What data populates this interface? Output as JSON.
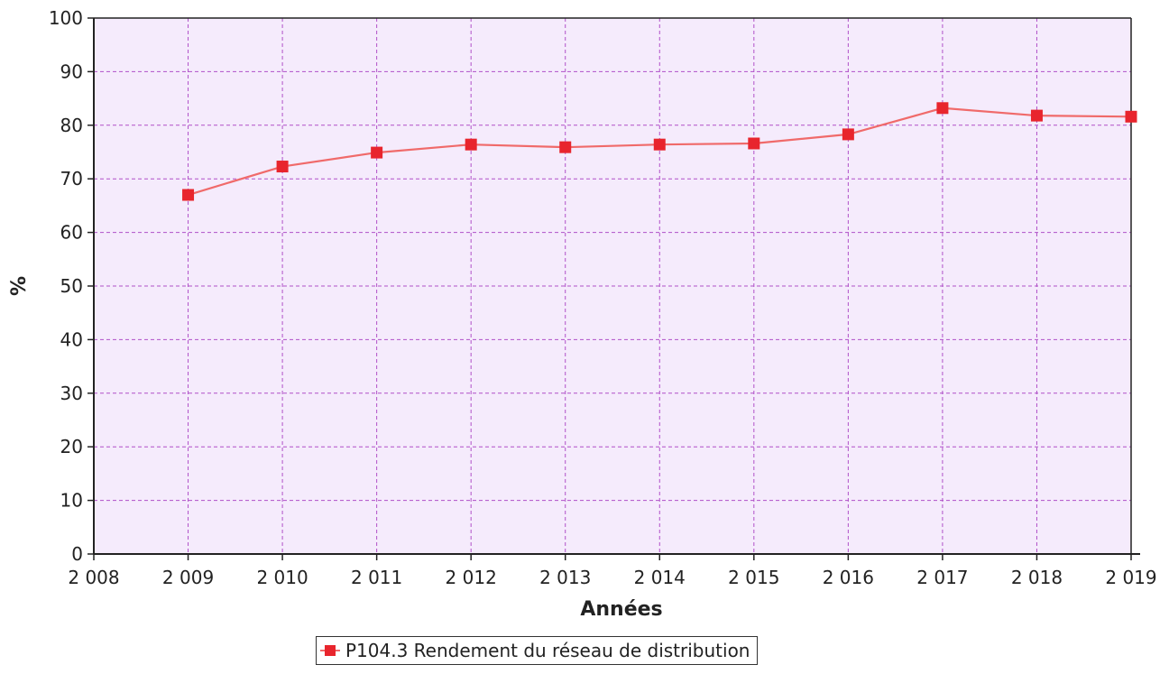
{
  "chart_data": {
    "type": "line",
    "xlabel": "Années",
    "ylabel": "%",
    "x_ticks": [
      "2 008",
      "2 009",
      "2 010",
      "2 011",
      "2 012",
      "2 013",
      "2 014",
      "2 015",
      "2 016",
      "2 017",
      "2 018",
      "2 019"
    ],
    "y_ticks": [
      "0",
      "10",
      "20",
      "30",
      "40",
      "50",
      "60",
      "70",
      "80",
      "90",
      "100"
    ],
    "xlim": [
      2008,
      2019
    ],
    "ylim": [
      0,
      100
    ],
    "grid": true,
    "legend_position": "bottom",
    "series": [
      {
        "name": "P104.3 Rendement du réseau de distribution",
        "x": [
          2009,
          2010,
          2011,
          2012,
          2013,
          2014,
          2015,
          2016,
          2017,
          2018,
          2019
        ],
        "values": [
          67.0,
          72.3,
          74.9,
          76.4,
          75.9,
          76.4,
          76.6,
          78.3,
          83.2,
          81.8,
          81.6
        ]
      }
    ],
    "colors": {
      "plot_background": "#f5ebfc",
      "grid": "#b050c8",
      "line": "#f06a6a",
      "marker": "#e8252d",
      "axis": "#222222"
    }
  }
}
